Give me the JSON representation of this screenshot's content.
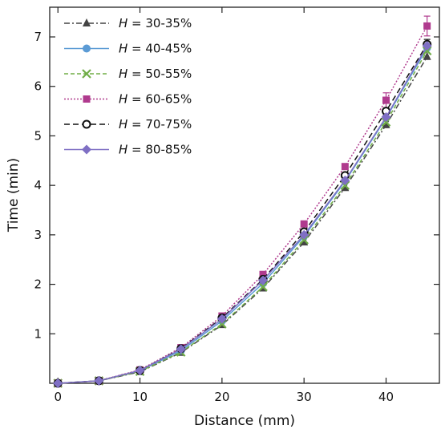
{
  "chart_data": {
    "type": "line",
    "xlabel": "Distance (mm)",
    "ylabel": "Time (min)",
    "xlim": [
      -1,
      46.5
    ],
    "ylim": [
      0,
      7.6
    ],
    "x_ticks": [
      0,
      10,
      20,
      30,
      40
    ],
    "y_ticks": [
      1,
      2,
      3,
      4,
      5,
      6,
      7
    ],
    "x_tick_labels": [
      "0",
      "10",
      "20",
      "30",
      "40"
    ],
    "y_tick_labels": [
      "1",
      "2",
      "3",
      "4",
      "5",
      "6",
      "7"
    ],
    "legend_position": "top-left",
    "x": [
      0,
      5,
      10,
      15,
      20,
      25,
      30,
      35,
      40,
      45
    ],
    "series": [
      {
        "name": "30-35%",
        "legend_prefix": "H",
        "legend_sep": " = ",
        "color": "#444444",
        "dash": "7,3,2,3",
        "marker": "triangle",
        "values": [
          0.0,
          0.05,
          0.23,
          0.62,
          1.18,
          1.92,
          2.85,
          3.95,
          5.22,
          6.6
        ]
      },
      {
        "name": "40-45%",
        "legend_prefix": "H",
        "legend_sep": " = ",
        "color": "#5b9bd5",
        "dash": "",
        "marker": "circle",
        "values": [
          0.0,
          0.05,
          0.25,
          0.66,
          1.26,
          2.02,
          2.97,
          4.08,
          5.36,
          6.78
        ]
      },
      {
        "name": "50-55%",
        "legend_prefix": "H",
        "legend_sep": " = ",
        "color": "#70ad47",
        "dash": "5,3",
        "marker": "x",
        "values": [
          0.0,
          0.05,
          0.24,
          0.63,
          1.2,
          1.95,
          2.9,
          4.0,
          5.28,
          6.72
        ]
      },
      {
        "name": "60-65%",
        "legend_prefix": "H",
        "legend_sep": " = ",
        "color": "#b03a8e",
        "dash": "2,2",
        "marker": "square",
        "values": [
          0.0,
          0.05,
          0.27,
          0.72,
          1.36,
          2.2,
          3.22,
          4.38,
          5.72,
          7.22
        ]
      },
      {
        "name": "70-75%",
        "legend_prefix": "H",
        "legend_sep": " = ",
        "color": "#111111",
        "dash": "7,4",
        "marker": "open-circle",
        "values": [
          0.0,
          0.05,
          0.26,
          0.7,
          1.32,
          2.1,
          3.06,
          4.2,
          5.5,
          6.85
        ]
      },
      {
        "name": "80-85%",
        "legend_prefix": "H",
        "legend_sep": " = ",
        "color": "#7f6fc4",
        "dash": "",
        "marker": "diamond",
        "values": [
          0.0,
          0.05,
          0.26,
          0.69,
          1.3,
          2.08,
          3.0,
          4.1,
          5.38,
          6.82
        ]
      }
    ],
    "error_bars": [
      {
        "series": "60-65%",
        "x": 40,
        "err": 0.15
      },
      {
        "series": "60-65%",
        "x": 45,
        "err": 0.2
      },
      {
        "series": "70-75%",
        "x": 45,
        "err": 0.1
      }
    ]
  }
}
